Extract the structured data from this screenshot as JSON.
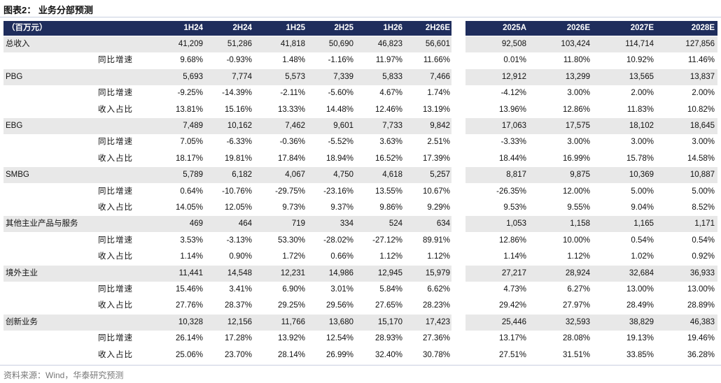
{
  "header": {
    "title": "图表2：  业务分部预测"
  },
  "table": {
    "unit": "（百万元）",
    "columns": [
      "1H24",
      "2H24",
      "1H25",
      "2H25",
      "1H26",
      "2H26E",
      "2025A",
      "2026E",
      "2027E",
      "2028E"
    ],
    "rows": [
      {
        "label": "总收入",
        "values": [
          "41,209",
          "51,286",
          "41,818",
          "50,690",
          "46,823",
          "56,601",
          "92,508",
          "103,424",
          "114,714",
          "127,856"
        ]
      },
      {
        "sublabel": "同比增速",
        "values": [
          "9.68%",
          "-0.93%",
          "1.48%",
          "-1.16%",
          "11.97%",
          "11.66%",
          "0.01%",
          "11.80%",
          "10.92%",
          "11.46%"
        ]
      },
      {
        "label": "PBG",
        "values": [
          "5,693",
          "7,774",
          "5,573",
          "7,339",
          "5,833",
          "7,466",
          "12,912",
          "13,299",
          "13,565",
          "13,837"
        ]
      },
      {
        "sublabel": "同比增速",
        "values": [
          "-9.25%",
          "-14.39%",
          "-2.11%",
          "-5.60%",
          "4.67%",
          "1.74%",
          "-4.12%",
          "3.00%",
          "2.00%",
          "2.00%"
        ]
      },
      {
        "sublabel": "收入占比",
        "values": [
          "13.81%",
          "15.16%",
          "13.33%",
          "14.48%",
          "12.46%",
          "13.19%",
          "13.96%",
          "12.86%",
          "11.83%",
          "10.82%"
        ]
      },
      {
        "label": "EBG",
        "values": [
          "7,489",
          "10,162",
          "7,462",
          "9,601",
          "7,733",
          "9,842",
          "17,063",
          "17,575",
          "18,102",
          "18,645"
        ]
      },
      {
        "sublabel": "同比增速",
        "values": [
          "7.05%",
          "-6.33%",
          "-0.36%",
          "-5.52%",
          "3.63%",
          "2.51%",
          "-3.33%",
          "3.00%",
          "3.00%",
          "3.00%"
        ]
      },
      {
        "sublabel": "收入占比",
        "values": [
          "18.17%",
          "19.81%",
          "17.84%",
          "18.94%",
          "16.52%",
          "17.39%",
          "18.44%",
          "16.99%",
          "15.78%",
          "14.58%"
        ]
      },
      {
        "label": "SMBG",
        "values": [
          "5,789",
          "6,182",
          "4,067",
          "4,750",
          "4,618",
          "5,257",
          "8,817",
          "9,875",
          "10,369",
          "10,887"
        ]
      },
      {
        "sublabel": "同比增速",
        "values": [
          "0.64%",
          "-10.76%",
          "-29.75%",
          "-23.16%",
          "13.55%",
          "10.67%",
          "-26.35%",
          "12.00%",
          "5.00%",
          "5.00%"
        ]
      },
      {
        "sublabel": "收入占比",
        "values": [
          "14.05%",
          "12.05%",
          "9.73%",
          "9.37%",
          "9.86%",
          "9.29%",
          "9.53%",
          "9.55%",
          "9.04%",
          "8.52%"
        ]
      },
      {
        "label": "其他主业产品与服务",
        "values": [
          "469",
          "464",
          "719",
          "334",
          "524",
          "634",
          "1,053",
          "1,158",
          "1,165",
          "1,171"
        ]
      },
      {
        "sublabel": "同比增速",
        "values": [
          "3.53%",
          "-3.13%",
          "53.30%",
          "-28.02%",
          "-27.12%",
          "89.91%",
          "12.86%",
          "10.00%",
          "0.54%",
          "0.54%"
        ]
      },
      {
        "sublabel": "收入占比",
        "values": [
          "1.14%",
          "0.90%",
          "1.72%",
          "0.66%",
          "1.12%",
          "1.12%",
          "1.14%",
          "1.12%",
          "1.02%",
          "0.92%"
        ]
      },
      {
        "label": "境外主业",
        "values": [
          "11,441",
          "14,548",
          "12,231",
          "14,986",
          "12,945",
          "15,979",
          "27,217",
          "28,924",
          "32,684",
          "36,933"
        ]
      },
      {
        "sublabel": "同比增速",
        "values": [
          "15.46%",
          "3.41%",
          "6.90%",
          "3.01%",
          "5.84%",
          "6.62%",
          "4.73%",
          "6.27%",
          "13.00%",
          "13.00%"
        ]
      },
      {
        "sublabel": "收入占比",
        "values": [
          "27.76%",
          "28.37%",
          "29.25%",
          "29.56%",
          "27.65%",
          "28.23%",
          "29.42%",
          "27.97%",
          "28.49%",
          "28.89%"
        ]
      },
      {
        "label": "创新业务",
        "values": [
          "10,328",
          "12,156",
          "11,766",
          "13,680",
          "15,170",
          "17,423",
          "25,446",
          "32,593",
          "38,829",
          "46,383"
        ]
      },
      {
        "sublabel": "同比增速",
        "values": [
          "26.14%",
          "17.28%",
          "13.92%",
          "12.54%",
          "28.93%",
          "27.36%",
          "13.17%",
          "28.08%",
          "19.13%",
          "19.46%"
        ]
      },
      {
        "sublabel": "收入占比",
        "values": [
          "25.06%",
          "23.70%",
          "28.14%",
          "26.99%",
          "32.40%",
          "30.78%",
          "27.51%",
          "31.51%",
          "33.85%",
          "36.28%"
        ]
      }
    ]
  },
  "footer": {
    "source": "资料来源：Wind，华泰研究预测"
  }
}
